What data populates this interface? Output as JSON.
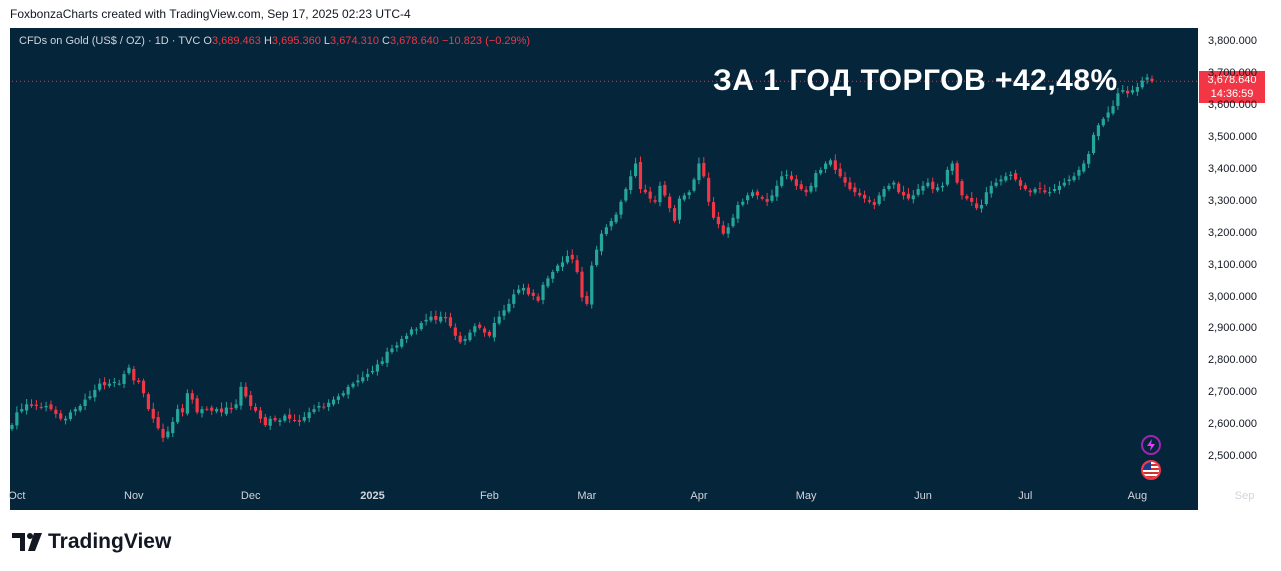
{
  "header": {
    "caption": "FoxbonzaCharts created with TradingView.com, Sep 17, 2025 02:23 UTC-4"
  },
  "legend": {
    "symbol": "CFDs on Gold (US$ / OZ) · 1D · TVC",
    "o_label": "O",
    "o_value": "3,689.463",
    "h_label": "H",
    "h_value": "3,695.360",
    "l_label": "L",
    "l_value": "3,674.310",
    "c_label": "C",
    "c_value": "3,678.640",
    "change": "−10.823 (−0.29%)"
  },
  "headline": "ЗА 1 ГОД ТОРГОВ +42,48%",
  "last_price": {
    "value": "3,678.640",
    "countdown": "14:36:59"
  },
  "brand": {
    "name": "TradingView"
  },
  "icons": {
    "flash": "flash-icon",
    "flag": "us-flag-icon"
  },
  "colors": {
    "up": "#26a69a",
    "down": "#f23645",
    "background": "#04253a",
    "price_line": "#f23645"
  },
  "chart_data": {
    "type": "candlestick",
    "title": "",
    "xlabel": "",
    "ylabel": "",
    "ylim": [
      2450,
      3830
    ],
    "y_ticks": [
      "2,500.000",
      "2,600.000",
      "2,700.000",
      "2,800.000",
      "2,900.000",
      "3,000.000",
      "3,100.000",
      "3,200.000",
      "3,300.000",
      "3,400.000",
      "3,500.000",
      "3,600.000",
      "3,700.000",
      "3,800.000"
    ],
    "x_ticks": [
      {
        "label": "Oct",
        "bold": false,
        "x": 1
      },
      {
        "label": "Nov",
        "bold": false,
        "x": 25
      },
      {
        "label": "Dec",
        "bold": false,
        "x": 49
      },
      {
        "label": "2025",
        "bold": true,
        "x": 74
      },
      {
        "label": "Feb",
        "bold": false,
        "x": 98
      },
      {
        "label": "Mar",
        "bold": false,
        "x": 118
      },
      {
        "label": "Apr",
        "bold": false,
        "x": 141
      },
      {
        "label": "May",
        "bold": false,
        "x": 163
      },
      {
        "label": "Jun",
        "bold": false,
        "x": 187
      },
      {
        "label": "Jul",
        "bold": false,
        "x": 208
      },
      {
        "label": "Aug",
        "bold": false,
        "x": 231
      },
      {
        "label": "Sep",
        "bold": false,
        "x": 253
      }
    ],
    "close_series": [
      2600,
      2640,
      2650,
      2665,
      2660,
      2660,
      2655,
      2660,
      2650,
      2635,
      2620,
      2620,
      2640,
      2650,
      2660,
      2680,
      2690,
      2710,
      2730,
      2725,
      2730,
      2735,
      2730,
      2760,
      2780,
      2740,
      2735,
      2700,
      2650,
      2620,
      2590,
      2560,
      2580,
      2610,
      2650,
      2640,
      2700,
      2680,
      2640,
      2650,
      2650,
      2645,
      2650,
      2640,
      2655,
      2650,
      2665,
      2720,
      2690,
      2660,
      2645,
      2620,
      2600,
      2620,
      2615,
      2615,
      2630,
      2620,
      2615,
      2610,
      2625,
      2640,
      2650,
      2660,
      2655,
      2670,
      2680,
      2690,
      2700,
      2720,
      2730,
      2740,
      2750,
      2760,
      2770,
      2790,
      2800,
      2830,
      2840,
      2850,
      2870,
      2880,
      2900,
      2900,
      2920,
      2930,
      2940,
      2930,
      2940,
      2935,
      2910,
      2880,
      2860,
      2870,
      2890,
      2910,
      2905,
      2890,
      2880,
      2920,
      2940,
      2960,
      2980,
      3010,
      3025,
      3030,
      3010,
      3005,
      2990,
      3040,
      3060,
      3080,
      3100,
      3110,
      3130,
      3120,
      3080,
      3000,
      2980,
      3100,
      3150,
      3200,
      3220,
      3240,
      3260,
      3300,
      3340,
      3380,
      3420,
      3340,
      3330,
      3310,
      3300,
      3350,
      3320,
      3280,
      3240,
      3310,
      3320,
      3330,
      3370,
      3420,
      3380,
      3300,
      3250,
      3230,
      3200,
      3220,
      3250,
      3290,
      3300,
      3320,
      3330,
      3320,
      3310,
      3300,
      3320,
      3350,
      3380,
      3385,
      3370,
      3350,
      3340,
      3330,
      3350,
      3390,
      3400,
      3420,
      3430,
      3400,
      3380,
      3360,
      3340,
      3330,
      3320,
      3310,
      3300,
      3290,
      3320,
      3340,
      3350,
      3360,
      3330,
      3320,
      3310,
      3320,
      3340,
      3350,
      3360,
      3340,
      3345,
      3350,
      3400,
      3420,
      3360,
      3320,
      3310,
      3300,
      3280,
      3290,
      3330,
      3350,
      3360,
      3370,
      3380,
      3385,
      3370,
      3350,
      3340,
      3330,
      3340,
      3340,
      3330,
      3330,
      3340,
      3350,
      3360,
      3370,
      3380,
      3400,
      3420,
      3450,
      3510,
      3540,
      3560,
      3580,
      3600,
      3640,
      3650,
      3640,
      3650,
      3660,
      3680,
      3690,
      3678
    ]
  }
}
